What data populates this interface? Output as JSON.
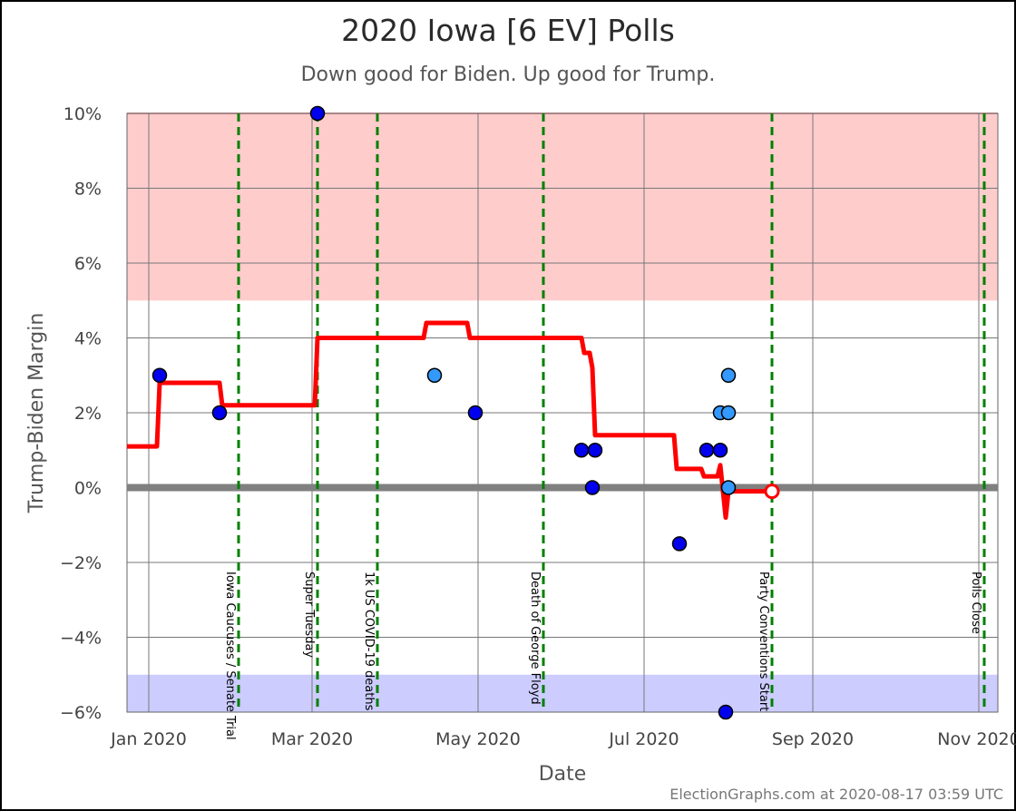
{
  "title": "2020 Iowa [6 EV] Polls",
  "subtitle": "Down good for Biden. Up good for Trump.",
  "footer": "ElectionGraphs.com at 2020-08-17 03:59 UTC",
  "colors": {
    "trump_band": "#ffcccc",
    "biden_band": "#ccccff",
    "average_line": "#ff0000",
    "zero_line": "#808080",
    "event_line": "#008000",
    "poll_dark": "#0000ee",
    "poll_light": "#3399ff"
  },
  "chart_data": {
    "type": "scatter",
    "xlabel": "Date",
    "ylabel": "Trump-Biden Margin",
    "xlim": [
      "2019-12-24",
      "2020-11-08"
    ],
    "ylim": [
      -6,
      10
    ],
    "x_ticks": [
      {
        "date": "2020-01-01",
        "label": "Jan 2020"
      },
      {
        "date": "2020-03-01",
        "label": "Mar 2020"
      },
      {
        "date": "2020-05-01",
        "label": "May 2020"
      },
      {
        "date": "2020-07-01",
        "label": "Jul 2020"
      },
      {
        "date": "2020-09-01",
        "label": "Sep 2020"
      },
      {
        "date": "2020-11-01",
        "label": "Nov 2020"
      }
    ],
    "y_ticks": [
      {
        "value": 10,
        "label": "10%"
      },
      {
        "value": 8,
        "label": "8%"
      },
      {
        "value": 6,
        "label": "6%"
      },
      {
        "value": 4,
        "label": "4%"
      },
      {
        "value": 2,
        "label": "2%"
      },
      {
        "value": 0,
        "label": "0%"
      },
      {
        "value": -2,
        "label": "−2%"
      },
      {
        "value": -4,
        "label": "−4%"
      },
      {
        "value": -6,
        "label": "−6%"
      }
    ],
    "grid": true,
    "bands": [
      {
        "from": 5,
        "to": 10,
        "party": "trump"
      },
      {
        "from": -6,
        "to": -5,
        "party": "biden"
      }
    ],
    "events": [
      {
        "date": "2020-02-03",
        "label": "Iowa Caucuses / Senate Trial"
      },
      {
        "date": "2020-03-03",
        "label": "Super Tuesday"
      },
      {
        "date": "2020-03-25",
        "label": "1k US COVID-19 deaths"
      },
      {
        "date": "2020-05-25",
        "label": "Death of George Floyd"
      },
      {
        "date": "2020-08-17",
        "label": "Party Conventions Start"
      },
      {
        "date": "2020-11-03",
        "label": "Polls Close"
      }
    ],
    "average": [
      [
        "2019-12-24",
        1.1
      ],
      [
        "2020-01-04",
        1.1
      ],
      [
        "2020-01-05",
        2.8
      ],
      [
        "2020-01-27",
        2.8
      ],
      [
        "2020-01-28",
        2.2
      ],
      [
        "2020-03-02",
        2.2
      ],
      [
        "2020-03-03",
        4.0
      ],
      [
        "2020-04-11",
        4.0
      ],
      [
        "2020-04-12",
        4.4
      ],
      [
        "2020-04-27",
        4.4
      ],
      [
        "2020-04-28",
        4.0
      ],
      [
        "2020-06-08",
        4.0
      ],
      [
        "2020-06-09",
        3.6
      ],
      [
        "2020-06-11",
        3.6
      ],
      [
        "2020-06-12",
        3.2
      ],
      [
        "2020-06-13",
        1.4
      ],
      [
        "2020-07-12",
        1.4
      ],
      [
        "2020-07-13",
        0.5
      ],
      [
        "2020-07-22",
        0.5
      ],
      [
        "2020-07-23",
        0.3
      ],
      [
        "2020-07-28",
        0.3
      ],
      [
        "2020-07-29",
        0.6
      ],
      [
        "2020-07-31",
        -0.8
      ],
      [
        "2020-08-01",
        -0.1
      ],
      [
        "2020-08-17",
        -0.1
      ]
    ],
    "average_end": {
      "date": "2020-08-17",
      "value": -0.1
    },
    "polls": [
      {
        "date": "2020-01-05",
        "margin": 3,
        "shade": "dark"
      },
      {
        "date": "2020-01-27",
        "margin": 2,
        "shade": "dark"
      },
      {
        "date": "2020-03-03",
        "margin": 10,
        "shade": "dark"
      },
      {
        "date": "2020-04-15",
        "margin": 3,
        "shade": "light"
      },
      {
        "date": "2020-04-30",
        "margin": 2,
        "shade": "dark"
      },
      {
        "date": "2020-06-08",
        "margin": 1,
        "shade": "dark"
      },
      {
        "date": "2020-06-12",
        "margin": 0,
        "shade": "dark"
      },
      {
        "date": "2020-06-13",
        "margin": 1,
        "shade": "dark"
      },
      {
        "date": "2020-07-14",
        "margin": -1.5,
        "shade": "dark"
      },
      {
        "date": "2020-07-24",
        "margin": 1,
        "shade": "dark"
      },
      {
        "date": "2020-07-29",
        "margin": 1,
        "shade": "dark"
      },
      {
        "date": "2020-07-29",
        "margin": 2,
        "shade": "light"
      },
      {
        "date": "2020-07-31",
        "margin": -6,
        "shade": "dark"
      },
      {
        "date": "2020-08-01",
        "margin": 3,
        "shade": "light"
      },
      {
        "date": "2020-08-01",
        "margin": 2,
        "shade": "light"
      },
      {
        "date": "2020-08-01",
        "margin": 0,
        "shade": "light"
      }
    ]
  }
}
